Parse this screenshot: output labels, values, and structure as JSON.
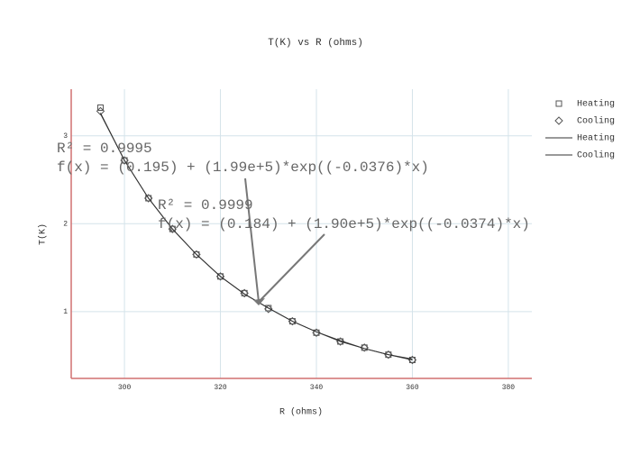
{
  "chart_data": {
    "type": "scatter",
    "title": "T(K) vs R (ohms)",
    "x_label": "R (ohms)",
    "y_label": "T(K)",
    "x": [
      295,
      300,
      305,
      310,
      315,
      320,
      325,
      330,
      335,
      340,
      345,
      350,
      355,
      360
    ],
    "series": [
      {
        "name": "Heating",
        "mode": "markers",
        "marker": "square",
        "color": "#555555",
        "values": [
          3.32,
          2.72,
          2.29,
          1.94,
          1.65,
          1.4,
          1.21,
          1.04,
          0.89,
          0.76,
          0.66,
          0.59,
          0.51,
          0.45
        ]
      },
      {
        "name": "Cooling",
        "mode": "markers",
        "marker": "diamond",
        "color": "#555555",
        "values": [
          3.28,
          2.72,
          2.29,
          1.94,
          1.65,
          1.4,
          1.21,
          1.03,
          0.89,
          0.76,
          0.66,
          0.59,
          0.51,
          0.45
        ]
      },
      {
        "name": "Heating",
        "mode": "lines",
        "color": "#333333",
        "values": [
          3.26,
          2.72,
          2.29,
          1.94,
          1.65,
          1.4,
          1.2,
          1.04,
          0.89,
          0.77,
          0.66,
          0.58,
          0.51,
          0.45
        ]
      },
      {
        "name": "Cooling",
        "mode": "lines",
        "color": "#333333",
        "values": [
          3.25,
          2.72,
          2.29,
          1.94,
          1.65,
          1.4,
          1.2,
          1.04,
          0.89,
          0.77,
          0.67,
          0.58,
          0.51,
          0.46
        ]
      }
    ],
    "annotations": [
      {
        "lines": [
          "R² = 0.9995",
          "f(x) = (0.195) + (1.99e+5)*exp((-0.0376)*x)"
        ]
      },
      {
        "lines": [
          "R² = 0.9999",
          "f(x) = (0.184) + (1.90e+5)*exp((-0.0374)*x)"
        ]
      }
    ],
    "xlim": [
      288.9,
      384.9
    ],
    "ylim": [
      0.24,
      3.53
    ],
    "xticks": [
      300,
      320,
      340,
      360,
      380
    ],
    "yticks": [
      1,
      2,
      3
    ],
    "grid": true,
    "legend": "right"
  }
}
